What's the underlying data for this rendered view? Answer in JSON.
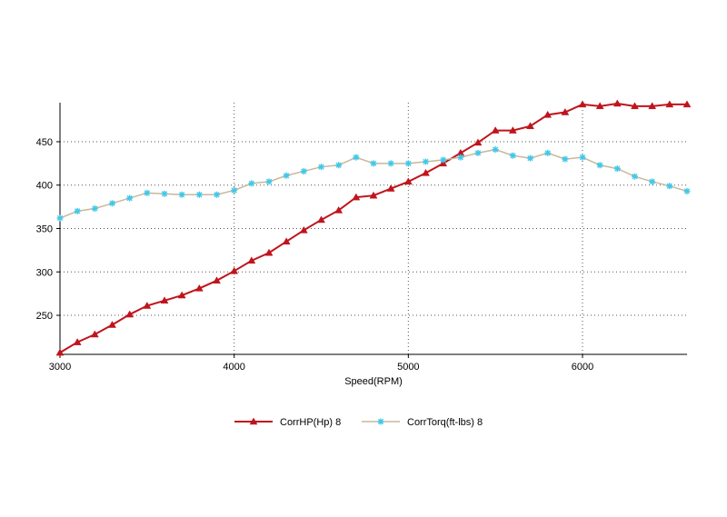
{
  "chart_data": {
    "type": "line",
    "xlabel": "Speed(RPM)",
    "ylabel": "",
    "xlim": [
      3000,
      6600
    ],
    "ylim": [
      205,
      495
    ],
    "xticks": [
      3000,
      4000,
      5000,
      6000
    ],
    "yticks": [
      250,
      300,
      350,
      400,
      450
    ],
    "grid": true,
    "legend_position": "bottom",
    "series": [
      {
        "name": "CorrHP(Hp)  8",
        "color": "#c0141c",
        "marker": "triangle",
        "x": [
          3000,
          3100,
          3200,
          3300,
          3400,
          3500,
          3600,
          3700,
          3800,
          3900,
          4000,
          4100,
          4200,
          4300,
          4400,
          4500,
          4600,
          4700,
          4800,
          4900,
          5000,
          5100,
          5200,
          5300,
          5400,
          5500,
          5600,
          5700,
          5800,
          5900,
          6000,
          6100,
          6200,
          6300,
          6400,
          6500,
          6600
        ],
        "y": [
          207,
          219,
          228,
          239,
          251,
          261,
          267,
          273,
          281,
          290,
          301,
          313,
          322,
          335,
          348,
          360,
          371,
          386,
          388,
          396,
          404,
          414,
          425,
          437,
          449,
          463,
          463,
          468,
          481,
          484,
          493,
          491,
          494,
          491,
          491,
          493,
          493
        ]
      },
      {
        "name": "CorrTorq(ft-lbs)  8",
        "color": "#c8b89a",
        "marker_color": "#40c8e8",
        "marker": "star",
        "x": [
          3000,
          3100,
          3200,
          3300,
          3400,
          3500,
          3600,
          3700,
          3800,
          3900,
          4000,
          4100,
          4200,
          4300,
          4400,
          4500,
          4600,
          4700,
          4800,
          4900,
          5000,
          5100,
          5200,
          5300,
          5400,
          5500,
          5600,
          5700,
          5800,
          5900,
          6000,
          6100,
          6200,
          6300,
          6400,
          6500,
          6600
        ],
        "y": [
          362,
          370,
          373,
          379,
          385,
          391,
          390,
          389,
          389,
          389,
          394,
          402,
          404,
          411,
          416,
          421,
          423,
          432,
          425,
          425,
          425,
          427,
          429,
          432,
          437,
          441,
          434,
          431,
          437,
          430,
          432,
          423,
          419,
          410,
          404,
          399,
          393
        ]
      }
    ]
  }
}
